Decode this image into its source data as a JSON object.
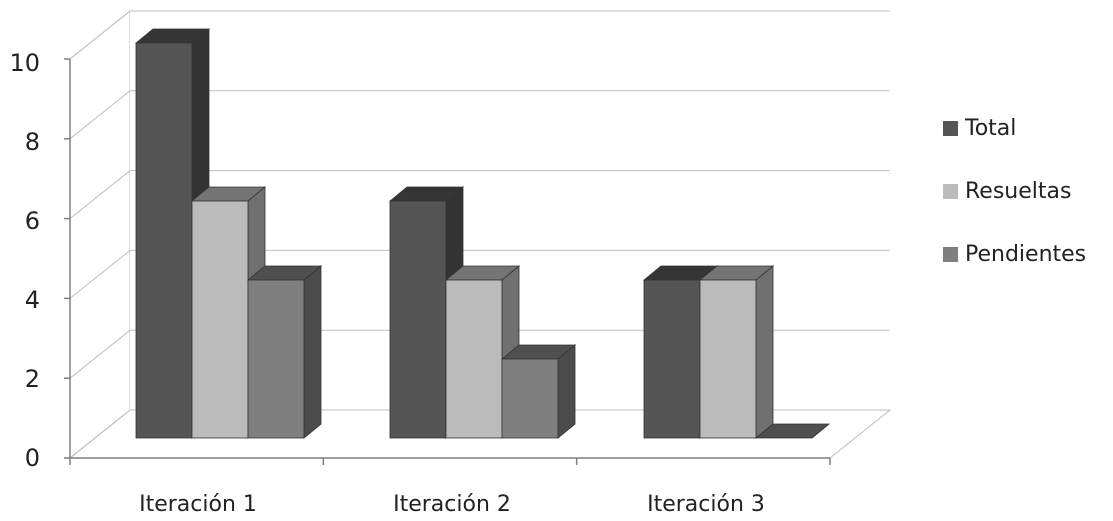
{
  "chart_data": {
    "type": "bar",
    "title": "",
    "xlabel": "",
    "ylabel": "",
    "categories": [
      "Iteración 1",
      "Iteración 2",
      "Iteración 3"
    ],
    "series": [
      {
        "name": "Total",
        "values": [
          10,
          6,
          4
        ],
        "color": "#555555"
      },
      {
        "name": "Resueltas",
        "values": [
          6,
          4,
          4
        ],
        "color": "#bbbbbb"
      },
      {
        "name": "Pendientes",
        "values": [
          4,
          2,
          0
        ],
        "color": "#7f7f7f"
      }
    ],
    "ylim": [
      0,
      10
    ],
    "yticks": [
      "0",
      "2",
      "4",
      "6",
      "8",
      "10"
    ],
    "grid": true,
    "legend_position": "right",
    "style": "3d-columns"
  }
}
